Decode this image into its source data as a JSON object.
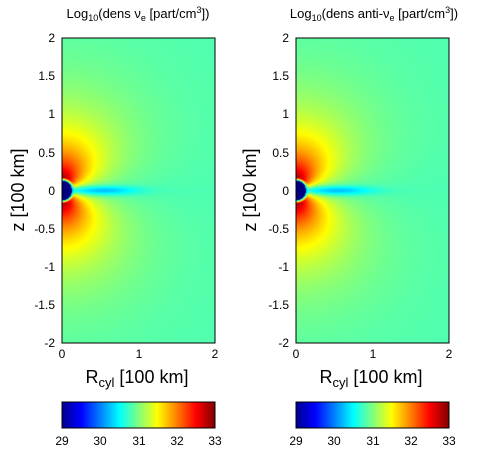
{
  "chart_data": [
    {
      "type": "heatmap",
      "title": "Log10(dens νe [part/cm3])",
      "title_parts": {
        "prefix": "Log",
        "log_base": "10",
        "mid": "(dens ν",
        "species_sub": "e",
        "unit": " [part/cm",
        "unit_sup": "3",
        "close": "])"
      },
      "xlabel": {
        "main": "R",
        "sub": "cyl",
        "rest": " [100 km]"
      },
      "ylabel": "z [100 km]",
      "xlim": [
        0,
        2
      ],
      "ylim": [
        -2,
        2
      ],
      "x_ticks": [
        "0",
        "1",
        "2"
      ],
      "y_ticks": [
        "2",
        "1.5",
        "1",
        "0.5",
        "0",
        "-0.5",
        "-1",
        "-1.5",
        "-2"
      ],
      "colormap": "jet",
      "clim": [
        29,
        33
      ],
      "colorbar_ticks": [
        "29",
        "30",
        "31",
        "32",
        "33"
      ],
      "features": {
        "inner_core_value": 29,
        "peak_lobe_value": 33,
        "far_field_value": 30.8,
        "equatorial_band_value": 30.2
      }
    },
    {
      "type": "heatmap",
      "title": "Log10(dens anti-νe [part/cm3])",
      "title_parts": {
        "prefix": "Log",
        "log_base": "10",
        "mid": "(dens anti-ν",
        "species_sub": "e",
        "unit": " [part/cm",
        "unit_sup": "3",
        "close": "])"
      },
      "xlabel": {
        "main": "R",
        "sub": "cyl",
        "rest": " [100 km]"
      },
      "ylabel": "z [100 km]",
      "xlim": [
        0,
        2
      ],
      "ylim": [
        -2,
        2
      ],
      "x_ticks": [
        "0",
        "1",
        "2"
      ],
      "y_ticks": [
        "2",
        "1.5",
        "1",
        "0.5",
        "0",
        "-0.5",
        "-1",
        "-1.5",
        "-2"
      ],
      "colormap": "jet",
      "clim": [
        29,
        33
      ],
      "colorbar_ticks": [
        "29",
        "30",
        "31",
        "32",
        "33"
      ],
      "features": {
        "inner_core_value": 29,
        "peak_lobe_value": 33,
        "far_field_value": 30.8,
        "equatorial_band_value": 30.2
      }
    }
  ]
}
